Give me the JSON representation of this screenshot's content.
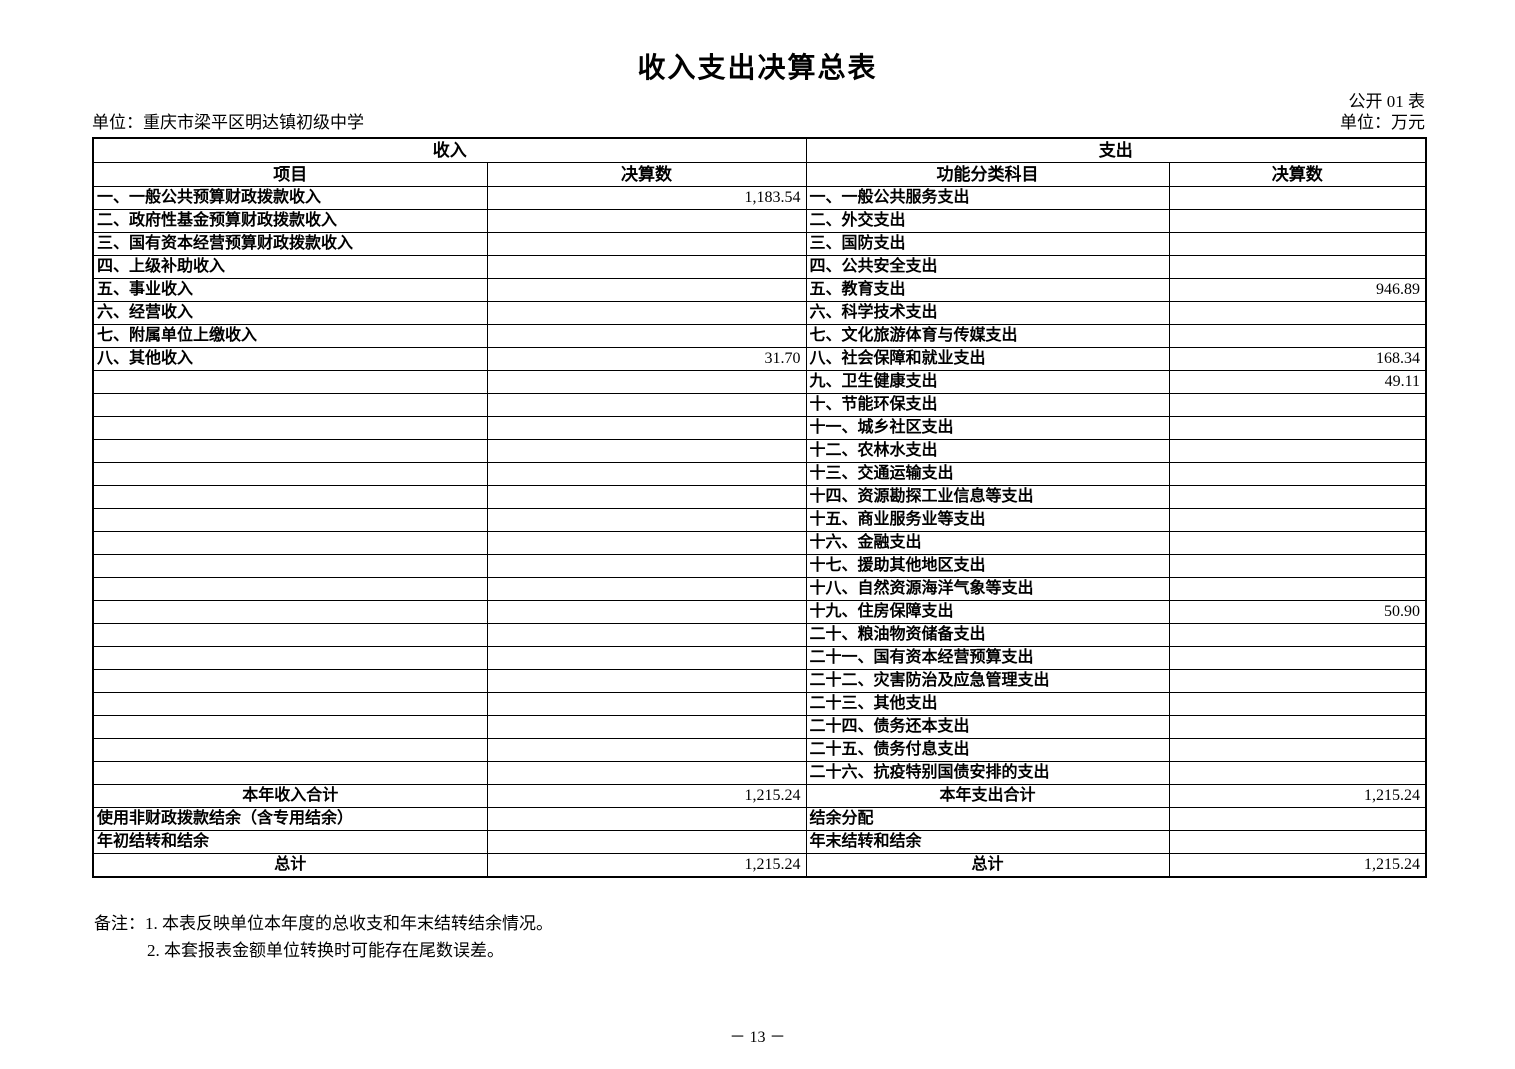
{
  "page": {
    "title": "收入支出决算总表",
    "table_code": "公开 01 表",
    "unit_left": "单位：重庆市梁平区明达镇初级中学",
    "unit_right": "单位：万元",
    "page_number": "－ 13 －"
  },
  "table": {
    "section_income": "收入",
    "section_expenditure": "支出",
    "col_income_item": "项目",
    "col_income_amount": "决算数",
    "col_expenditure_item": "功能分类科目",
    "col_expenditure_amount": "决算数",
    "income_rows": [
      {
        "item": "一、一般公共预算财政拨款收入",
        "amount": "1,183.54",
        "align": "left"
      },
      {
        "item": "二、政府性基金预算财政拨款收入",
        "amount": "",
        "align": "left"
      },
      {
        "item": "三、国有资本经营预算财政拨款收入",
        "amount": "",
        "align": "left"
      },
      {
        "item": "四、上级补助收入",
        "amount": "",
        "align": "left"
      },
      {
        "item": "五、事业收入",
        "amount": "",
        "align": "left"
      },
      {
        "item": "六、经营收入",
        "amount": "",
        "align": "left"
      },
      {
        "item": "七、附属单位上缴收入",
        "amount": "",
        "align": "left"
      },
      {
        "item": "八、其他收入",
        "amount": "31.70",
        "align": "left"
      },
      {
        "item": "",
        "amount": "",
        "align": "left"
      },
      {
        "item": "",
        "amount": "",
        "align": "left"
      },
      {
        "item": "",
        "amount": "",
        "align": "left"
      },
      {
        "item": "",
        "amount": "",
        "align": "left"
      },
      {
        "item": "",
        "amount": "",
        "align": "left"
      },
      {
        "item": "",
        "amount": "",
        "align": "left"
      },
      {
        "item": "",
        "amount": "",
        "align": "left"
      },
      {
        "item": "",
        "amount": "",
        "align": "left"
      },
      {
        "item": "",
        "amount": "",
        "align": "left"
      },
      {
        "item": "",
        "amount": "",
        "align": "left"
      },
      {
        "item": "",
        "amount": "",
        "align": "left"
      },
      {
        "item": "",
        "amount": "",
        "align": "left"
      },
      {
        "item": "",
        "amount": "",
        "align": "left"
      },
      {
        "item": "",
        "amount": "",
        "align": "left"
      },
      {
        "item": "",
        "amount": "",
        "align": "left"
      },
      {
        "item": "",
        "amount": "",
        "align": "left"
      },
      {
        "item": "",
        "amount": "",
        "align": "left"
      },
      {
        "item": "",
        "amount": "",
        "align": "left"
      },
      {
        "item": "本年收入合计",
        "amount": "1,215.24",
        "align": "center"
      },
      {
        "item": "使用非财政拨款结余（含专用结余）",
        "amount": "",
        "align": "left"
      },
      {
        "item": "年初结转和结余",
        "amount": "",
        "align": "left"
      },
      {
        "item": "总计",
        "amount": "1,215.24",
        "align": "center"
      }
    ],
    "expenditure_rows": [
      {
        "item": "一、一般公共服务支出",
        "amount": "",
        "align": "left"
      },
      {
        "item": "二、外交支出",
        "amount": "",
        "align": "left"
      },
      {
        "item": "三、国防支出",
        "amount": "",
        "align": "left"
      },
      {
        "item": "四、公共安全支出",
        "amount": "",
        "align": "left"
      },
      {
        "item": "五、教育支出",
        "amount": "946.89",
        "align": "left"
      },
      {
        "item": "六、科学技术支出",
        "amount": "",
        "align": "left"
      },
      {
        "item": "七、文化旅游体育与传媒支出",
        "amount": "",
        "align": "left"
      },
      {
        "item": "八、社会保障和就业支出",
        "amount": "168.34",
        "align": "left"
      },
      {
        "item": "九、卫生健康支出",
        "amount": "49.11",
        "align": "left"
      },
      {
        "item": "十、节能环保支出",
        "amount": "",
        "align": "left"
      },
      {
        "item": "十一、城乡社区支出",
        "amount": "",
        "align": "left"
      },
      {
        "item": "十二、农林水支出",
        "amount": "",
        "align": "left"
      },
      {
        "item": "十三、交通运输支出",
        "amount": "",
        "align": "left"
      },
      {
        "item": "十四、资源勘探工业信息等支出",
        "amount": "",
        "align": "left"
      },
      {
        "item": "十五、商业服务业等支出",
        "amount": "",
        "align": "left"
      },
      {
        "item": "十六、金融支出",
        "amount": "",
        "align": "left"
      },
      {
        "item": "十七、援助其他地区支出",
        "amount": "",
        "align": "left"
      },
      {
        "item": "十八、自然资源海洋气象等支出",
        "amount": "",
        "align": "left"
      },
      {
        "item": "十九、住房保障支出",
        "amount": "50.90",
        "align": "left"
      },
      {
        "item": "二十、粮油物资储备支出",
        "amount": "",
        "align": "left"
      },
      {
        "item": "二十一、国有资本经营预算支出",
        "amount": "",
        "align": "left"
      },
      {
        "item": "二十二、灾害防治及应急管理支出",
        "amount": "",
        "align": "left"
      },
      {
        "item": "二十三、其他支出",
        "amount": "",
        "align": "left"
      },
      {
        "item": "二十四、债务还本支出",
        "amount": "",
        "align": "left"
      },
      {
        "item": "二十五、债务付息支出",
        "amount": "",
        "align": "left"
      },
      {
        "item": "二十六、抗疫特别国债安排的支出",
        "amount": "",
        "align": "left"
      },
      {
        "item": "本年支出合计",
        "amount": "1,215.24",
        "align": "center"
      },
      {
        "item": "结余分配",
        "amount": "",
        "align": "left"
      },
      {
        "item": "年末结转和结余",
        "amount": "",
        "align": "left"
      },
      {
        "item": "总计",
        "amount": "1,215.24",
        "align": "center"
      }
    ]
  },
  "notes": {
    "label": "备注：",
    "line1": "1. 本表反映单位本年度的总收支和年末结转结余情况。",
    "line2": "2. 本套报表金额单位转换时可能存在尾数误差。"
  }
}
